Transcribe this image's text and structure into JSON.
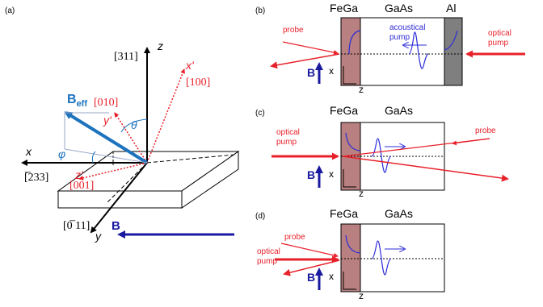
{
  "panel_a": {
    "label": "(a)",
    "dir_311": "[311]",
    "dir_100": "[100]",
    "dir_010": "[010]",
    "dir_001": "[001]",
    "dir_233": "[̅233]",
    "dir_011": "[0̅ 11]",
    "axis_x": "x",
    "axis_y": "y",
    "axis_z": "z",
    "axis_xp": "x'",
    "axis_yp": "y'",
    "axis_zp": "z'",
    "theta": "θ",
    "phi": "φ",
    "beff_main": "B",
    "beff_sub": "eff",
    "b": "B"
  },
  "panel_b": {
    "label": "(b)",
    "fega": "FeGa",
    "gaas": "GaAs",
    "al": "Al",
    "probe": "probe",
    "optical_pump_1": "optical",
    "optical_pump_2": "pump",
    "acoustical_1": "acoustical",
    "acoustical_2": "pump",
    "b": "B",
    "x": "x",
    "z": "z"
  },
  "panel_c": {
    "label": "(c)",
    "fega": "FeGa",
    "gaas": "GaAs",
    "probe": "probe",
    "optical_pump_1": "optical",
    "optical_pump_2": "pump",
    "b": "B",
    "x": "x",
    "z": "z"
  },
  "panel_d": {
    "label": "(d)",
    "fega": "FeGa",
    "gaas": "GaAs",
    "probe": "probe",
    "optical_pump_1": "optical",
    "optical_pump_2": "pump",
    "b": "B",
    "x": "x",
    "z": "z"
  },
  "colors": {
    "red": "#e8202a",
    "blue": "#1a1aa0",
    "wave": "#2b2bd8",
    "beff": "#1e73be",
    "fega_fill": "#b88080",
    "al_fill": "#7f7f7f"
  }
}
